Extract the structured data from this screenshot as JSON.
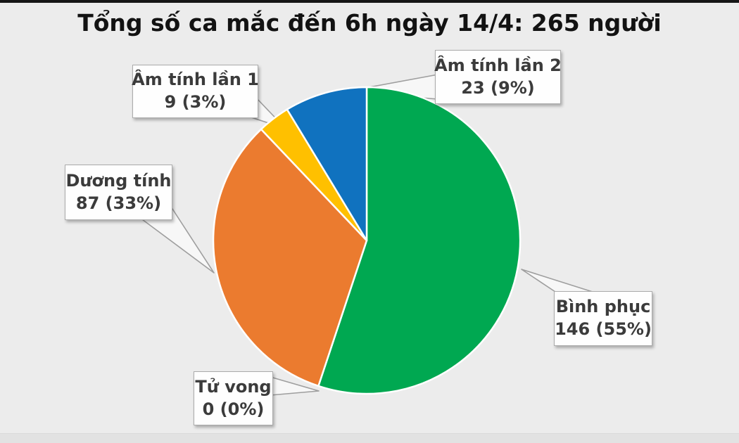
{
  "title": "Tổng số ca mắc đến 6h ngày 14/4: 265 người",
  "chart_data": {
    "type": "pie",
    "title": "Tổng số ca mắc đến 6h ngày 14/4: 265 người",
    "total": 265,
    "total_unit": "người",
    "start_angle_deg": 0,
    "direction": "clockwise",
    "legend": "callout-labels",
    "slices": [
      {
        "label": "Bình phục",
        "value": 146,
        "pct": "55%",
        "color": "#00A851"
      },
      {
        "label": "Tử vong",
        "value": 0,
        "pct": "0%",
        "color": "#BFBFBF"
      },
      {
        "label": "Dương tính",
        "value": 87,
        "pct": "33%",
        "color": "#EB7B2F"
      },
      {
        "label": "Âm tính lần 1",
        "value": 9,
        "pct": "3%",
        "color": "#FFC000"
      },
      {
        "label": "Âm tính lần 2",
        "value": 23,
        "pct": "9%",
        "color": "#1072BF"
      }
    ]
  },
  "callouts": {
    "am_tinh_lan_1": {
      "line1": "Âm tính lần 1",
      "line2": "9 (3%)"
    },
    "am_tinh_lan_2": {
      "line1": "Âm tính lần 2",
      "line2": "23 (9%)"
    },
    "duong_tinh": {
      "line1": "Dương tính",
      "line2": "87 (33%)"
    },
    "binh_phuc": {
      "line1": "Bình phục",
      "line2": "146 (55%)"
    },
    "tu_vong": {
      "line1": "Tử vong",
      "line2": "0 (0%)"
    }
  }
}
